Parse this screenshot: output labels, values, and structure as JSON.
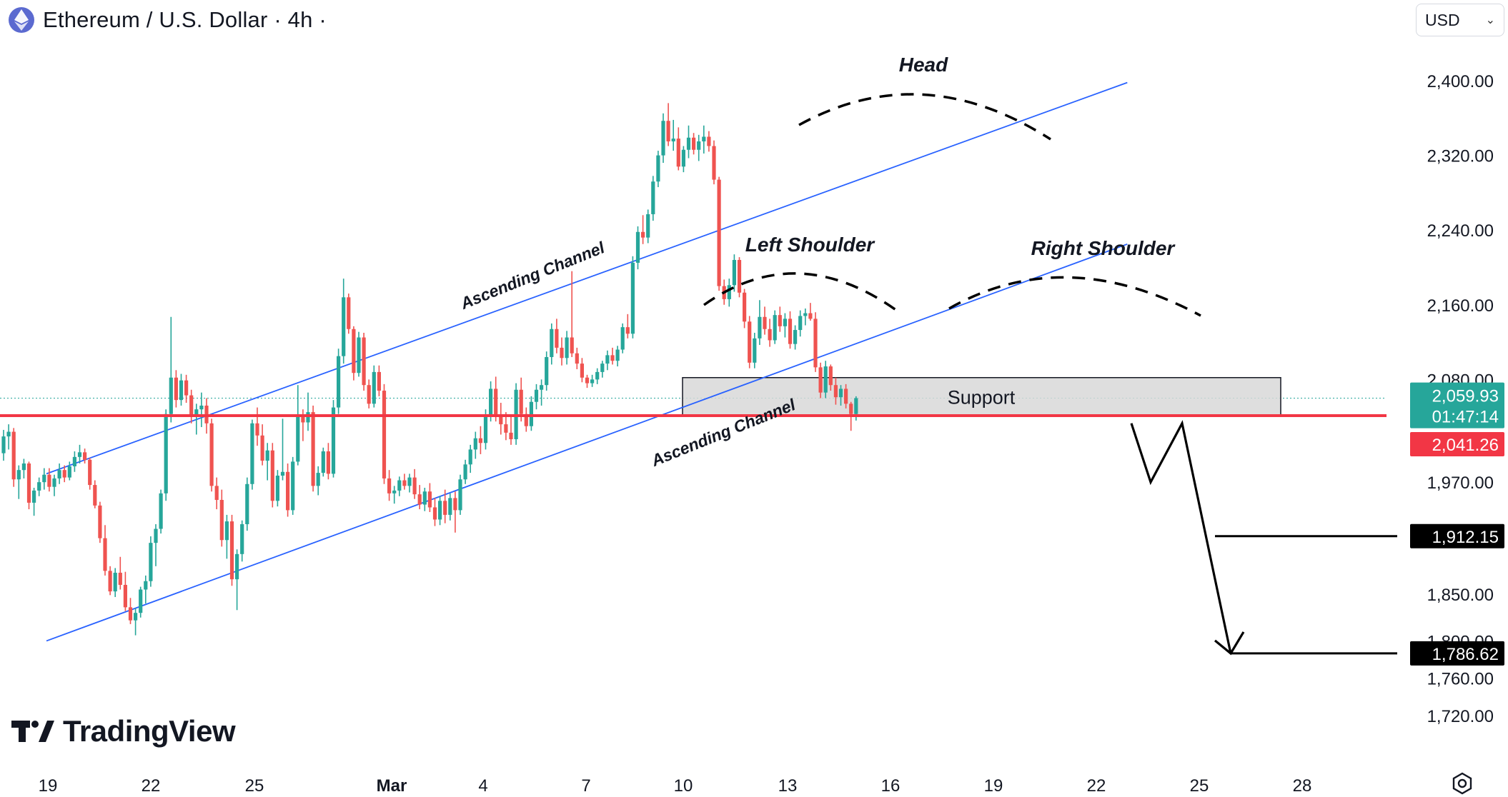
{
  "header": {
    "title": "Ethereum / U.S. Dollar · 4h ·",
    "currency": "USD"
  },
  "branding": {
    "name": "TradingView"
  },
  "colors": {
    "up": "#26a69a",
    "down": "#ef5350",
    "channel": "#2962ff",
    "support_line": "#f23645",
    "support_fill": "#d8d8d8",
    "label_last_bg": "#26a69a",
    "label_support_bg": "#f23645",
    "label_target_bg": "#000000",
    "axis_text": "#131722"
  },
  "chart_data": {
    "type": "candlestick",
    "title": "Ethereum / U.S. Dollar · 4h ·",
    "y_ticks": [
      "2,400.00",
      "2,320.00",
      "2,240.00",
      "2,160.00",
      "2,080.00",
      "1,970.00",
      "1,850.00",
      "1,800.00",
      "1,760.00",
      "1,720.00"
    ],
    "y_tick_values": [
      2400,
      2320,
      2240,
      2160,
      2080,
      1970,
      1850,
      1800,
      1760,
      1720
    ],
    "x_ticks": [
      "19",
      "22",
      "25",
      "Mar",
      "4",
      "7",
      "10",
      "13",
      "16",
      "19",
      "22",
      "25",
      "28"
    ],
    "price_labels": [
      {
        "value": "2,059.93",
        "countdown": "01:47:14",
        "role": "last"
      },
      {
        "value": "2,041.26",
        "role": "support"
      },
      {
        "value": "1,912.15",
        "role": "target"
      },
      {
        "value": "1,786.62",
        "role": "target"
      }
    ],
    "annotations": {
      "head": "Head",
      "left_shoulder": "Left Shoulder",
      "right_shoulder": "Right Shoulder",
      "upper_channel": "Ascending Channel",
      "lower_channel": "Ascending Channel",
      "support_zone": "Support"
    },
    "support_zone": [
      2041.26,
      2082
    ],
    "support_level": 2041.26,
    "targets": [
      1912.15,
      1786.62
    ],
    "upper_channel": [
      [
        0,
        1979
      ],
      [
        213,
        2398
      ]
    ],
    "lower_channel": [
      [
        0,
        1800
      ],
      [
        213,
        2225
      ]
    ],
    "projection_path": [
      [
        264,
        2033
      ],
      [
        270,
        1970
      ],
      [
        277,
        2033
      ],
      [
        290,
        1786.62
      ]
    ],
    "candles": [
      [
        2001,
        2026,
        1993,
        2019
      ],
      [
        2019,
        2032,
        2005,
        2024
      ],
      [
        2024,
        2028,
        1965,
        1973
      ],
      [
        1973,
        1988,
        1952,
        1983
      ],
      [
        1983,
        1995,
        1974,
        1990
      ],
      [
        1990,
        1992,
        1941,
        1948
      ],
      [
        1948,
        1964,
        1934,
        1961
      ],
      [
        1961,
        1975,
        1955,
        1970
      ],
      [
        1970,
        1985,
        1962,
        1978
      ],
      [
        1978,
        1985,
        1960,
        1965
      ],
      [
        1965,
        1978,
        1955,
        1974
      ],
      [
        1974,
        1990,
        1968,
        1983
      ],
      [
        1983,
        1988,
        1970,
        1975
      ],
      [
        1975,
        1992,
        1972,
        1987
      ],
      [
        1987,
        2003,
        1981,
        1997
      ],
      [
        1997,
        2010,
        1990,
        2002
      ],
      [
        2002,
        2006,
        1990,
        1994
      ],
      [
        1994,
        1996,
        1962,
        1967
      ],
      [
        1967,
        1972,
        1942,
        1945
      ],
      [
        1945,
        1949,
        1905,
        1910
      ],
      [
        1910,
        1924,
        1870,
        1875
      ],
      [
        1875,
        1880,
        1849,
        1853
      ],
      [
        1853,
        1878,
        1847,
        1873
      ],
      [
        1873,
        1890,
        1855,
        1860
      ],
      [
        1860,
        1874,
        1832,
        1836
      ],
      [
        1836,
        1846,
        1818,
        1822
      ],
      [
        1822,
        1835,
        1806,
        1830
      ],
      [
        1830,
        1858,
        1825,
        1855
      ],
      [
        1855,
        1870,
        1840,
        1864
      ],
      [
        1864,
        1912,
        1858,
        1905
      ],
      [
        1905,
        1925,
        1880,
        1920
      ],
      [
        1920,
        1962,
        1915,
        1958
      ],
      [
        1958,
        2048,
        1950,
        2043
      ],
      [
        2043,
        2147,
        2034,
        2082
      ],
      [
        2082,
        2090,
        2050,
        2058
      ],
      [
        2058,
        2086,
        2052,
        2079
      ],
      [
        2079,
        2085,
        2055,
        2063
      ],
      [
        2063,
        2069,
        2033,
        2040
      ],
      [
        2040,
        2054,
        2021,
        2048
      ],
      [
        2048,
        2066,
        2029,
        2052
      ],
      [
        2052,
        2060,
        2022,
        2033
      ],
      [
        2033,
        2038,
        1960,
        1966
      ],
      [
        1966,
        1975,
        1941,
        1951
      ],
      [
        1951,
        1962,
        1901,
        1908
      ],
      [
        1908,
        1935,
        1888,
        1928
      ],
      [
        1928,
        1935,
        1859,
        1866
      ],
      [
        1866,
        1898,
        1833,
        1893
      ],
      [
        1893,
        1929,
        1885,
        1925
      ],
      [
        1925,
        1975,
        1918,
        1968
      ],
      [
        1968,
        2037,
        1962,
        2033
      ],
      [
        2033,
        2050,
        2009,
        2020
      ],
      [
        2020,
        2032,
        1988,
        1993
      ],
      [
        1993,
        2012,
        1972,
        2004
      ],
      [
        2004,
        2012,
        1943,
        1950
      ],
      [
        1950,
        1983,
        1944,
        1977
      ],
      [
        1977,
        2038,
        1972,
        1981
      ],
      [
        1981,
        1990,
        1933,
        1940
      ],
      [
        1940,
        1997,
        1935,
        1992
      ],
      [
        1992,
        2074,
        1988,
        2041
      ],
      [
        2041,
        2048,
        2014,
        2034
      ],
      [
        2034,
        2066,
        2025,
        2045
      ],
      [
        2045,
        2052,
        1960,
        1966
      ],
      [
        1966,
        1987,
        1956,
        1980
      ],
      [
        1980,
        2007,
        1976,
        2003
      ],
      [
        2003,
        2012,
        1973,
        1979
      ],
      [
        1979,
        2058,
        1975,
        2050
      ],
      [
        2050,
        2113,
        2043,
        2105
      ],
      [
        2105,
        2188,
        2097,
        2168
      ],
      [
        2168,
        2172,
        2129,
        2134
      ],
      [
        2134,
        2137,
        2079,
        2087
      ],
      [
        2087,
        2131,
        2083,
        2125
      ],
      [
        2125,
        2130,
        2068,
        2074
      ],
      [
        2074,
        2080,
        2049,
        2054
      ],
      [
        2054,
        2095,
        2050,
        2088
      ],
      [
        2088,
        2095,
        2062,
        2068
      ],
      [
        2068,
        2075,
        1968,
        1974
      ],
      [
        1974,
        1983,
        1950,
        1958
      ],
      [
        1958,
        1966,
        1947,
        1961
      ],
      [
        1961,
        1976,
        1955,
        1972
      ],
      [
        1972,
        1979,
        1962,
        1966
      ],
      [
        1966,
        1979,
        1959,
        1975
      ],
      [
        1975,
        1984,
        1952,
        1957
      ],
      [
        1957,
        1967,
        1941,
        1946
      ],
      [
        1946,
        1964,
        1939,
        1960
      ],
      [
        1960,
        1969,
        1938,
        1943
      ],
      [
        1943,
        1953,
        1923,
        1930
      ],
      [
        1930,
        1955,
        1924,
        1950
      ],
      [
        1950,
        1962,
        1926,
        1935
      ],
      [
        1935,
        1958,
        1929,
        1953
      ],
      [
        1953,
        1960,
        1916,
        1940
      ],
      [
        1940,
        1978,
        1935,
        1973
      ],
      [
        1973,
        1994,
        1968,
        1989
      ],
      [
        1989,
        2010,
        1980,
        2005
      ],
      [
        2005,
        2024,
        1995,
        2017
      ],
      [
        2017,
        2030,
        2000,
        2012
      ],
      [
        2012,
        2048,
        2005,
        2041
      ],
      [
        2041,
        2078,
        2035,
        2070
      ],
      [
        2070,
        2083,
        2035,
        2041
      ],
      [
        2041,
        2055,
        2021,
        2032
      ],
      [
        2032,
        2045,
        2015,
        2023
      ],
      [
        2023,
        2040,
        2010,
        2016
      ],
      [
        2016,
        2076,
        2010,
        2069
      ],
      [
        2069,
        2082,
        2035,
        2043
      ],
      [
        2043,
        2050,
        2024,
        2030
      ],
      [
        2030,
        2062,
        2025,
        2056
      ],
      [
        2056,
        2075,
        2048,
        2069
      ],
      [
        2069,
        2080,
        2052,
        2074
      ],
      [
        2074,
        2110,
        2068,
        2104
      ],
      [
        2104,
        2140,
        2096,
        2134
      ],
      [
        2134,
        2145,
        2108,
        2114
      ],
      [
        2114,
        2125,
        2095,
        2103
      ],
      [
        2103,
        2132,
        2096,
        2125
      ],
      [
        2125,
        2196,
        2104,
        2108
      ],
      [
        2108,
        2114,
        2091,
        2097
      ],
      [
        2097,
        2103,
        2077,
        2082
      ],
      [
        2082,
        2085,
        2071,
        2076
      ],
      [
        2076,
        2085,
        2072,
        2080
      ],
      [
        2080,
        2092,
        2075,
        2088
      ],
      [
        2088,
        2100,
        2082,
        2097
      ],
      [
        2097,
        2111,
        2090,
        2106
      ],
      [
        2106,
        2114,
        2096,
        2100
      ],
      [
        2100,
        2116,
        2094,
        2112
      ],
      [
        2112,
        2140,
        2108,
        2136
      ],
      [
        2136,
        2150,
        2124,
        2129
      ],
      [
        2129,
        2212,
        2124,
        2205
      ],
      [
        2205,
        2244,
        2198,
        2238
      ],
      [
        2238,
        2256,
        2225,
        2232
      ],
      [
        2232,
        2262,
        2226,
        2257
      ],
      [
        2257,
        2298,
        2250,
        2292
      ],
      [
        2292,
        2325,
        2286,
        2320
      ],
      [
        2320,
        2365,
        2312,
        2357
      ],
      [
        2357,
        2376,
        2330,
        2335
      ],
      [
        2335,
        2358,
        2325,
        2338
      ],
      [
        2338,
        2350,
        2304,
        2308
      ],
      [
        2308,
        2330,
        2302,
        2326
      ],
      [
        2326,
        2352,
        2317,
        2339
      ],
      [
        2339,
        2344,
        2321,
        2326
      ],
      [
        2326,
        2342,
        2314,
        2335
      ],
      [
        2335,
        2352,
        2322,
        2340
      ],
      [
        2340,
        2346,
        2324,
        2330
      ],
      [
        2330,
        2336,
        2289,
        2294
      ],
      [
        2294,
        2297,
        2175,
        2180
      ],
      [
        2180,
        2187,
        2160,
        2166
      ],
      [
        2166,
        2188,
        2158,
        2181
      ],
      [
        2181,
        2214,
        2174,
        2208
      ],
      [
        2208,
        2211,
        2168,
        2173
      ],
      [
        2173,
        2177,
        2135,
        2142
      ],
      [
        2142,
        2148,
        2092,
        2098
      ],
      [
        2098,
        2130,
        2092,
        2124
      ],
      [
        2124,
        2165,
        2117,
        2147
      ],
      [
        2147,
        2158,
        2128,
        2134
      ],
      [
        2134,
        2145,
        2115,
        2122
      ],
      [
        2122,
        2154,
        2118,
        2149
      ],
      [
        2149,
        2158,
        2131,
        2137
      ],
      [
        2137,
        2151,
        2125,
        2145
      ],
      [
        2145,
        2153,
        2113,
        2118
      ],
      [
        2118,
        2138,
        2112,
        2133
      ],
      [
        2133,
        2154,
        2126,
        2148
      ],
      [
        2148,
        2156,
        2138,
        2151
      ],
      [
        2151,
        2162,
        2143,
        2145
      ],
      [
        2145,
        2152,
        2088,
        2093
      ],
      [
        2093,
        2098,
        2060,
        2066
      ],
      [
        2066,
        2100,
        2060,
        2094
      ],
      [
        2094,
        2096,
        2068,
        2074
      ],
      [
        2074,
        2082,
        2053,
        2061
      ],
      [
        2061,
        2074,
        2052,
        2070
      ],
      [
        2070,
        2075,
        2049,
        2054
      ],
      [
        2054,
        2056,
        2025,
        2043
      ],
      [
        2043,
        2062,
        2036,
        2060
      ]
    ]
  }
}
